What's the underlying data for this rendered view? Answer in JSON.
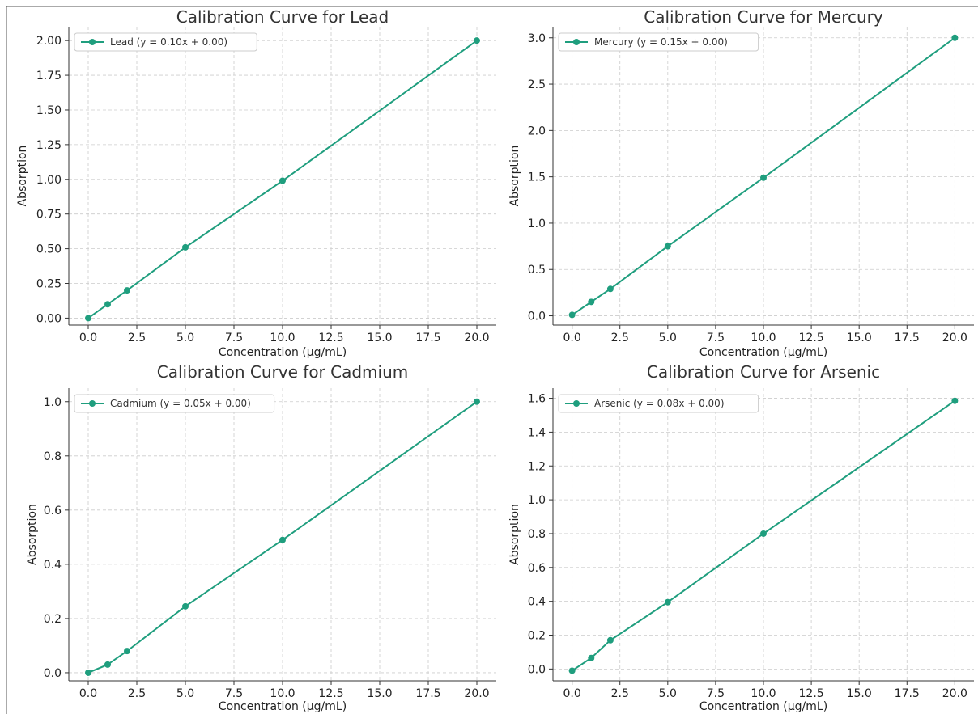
{
  "colors": {
    "series": "#1f9e7e",
    "grid": "#cccccc",
    "axis": "#333333",
    "frame": "#555555"
  },
  "chart_data": [
    {
      "type": "line",
      "title": "Calibration Curve for Lead",
      "xlabel": "Concentration (µg/mL)",
      "ylabel": "Absorption",
      "xlim": [
        -1,
        21
      ],
      "ylim": [
        -0.05,
        2.1
      ],
      "xticks": [
        0,
        2.5,
        5,
        7.5,
        10,
        12.5,
        15,
        17.5,
        20
      ],
      "xtick_labels": [
        "0.0",
        "2.5",
        "5.0",
        "7.5",
        "10.0",
        "12.5",
        "15.0",
        "17.5",
        "20.0"
      ],
      "yticks": [
        0,
        0.25,
        0.5,
        0.75,
        1.0,
        1.25,
        1.5,
        1.75,
        2.0
      ],
      "ytick_labels": [
        "0.00",
        "0.25",
        "0.50",
        "0.75",
        "1.00",
        "1.25",
        "1.50",
        "1.75",
        "2.00"
      ],
      "grid": true,
      "legend_position": "top-left",
      "series": [
        {
          "name": "Lead (y = 0.10x + 0.00)",
          "x": [
            0,
            1,
            2,
            5,
            10,
            20
          ],
          "y": [
            0.0,
            0.1,
            0.2,
            0.51,
            0.99,
            2.0
          ]
        }
      ]
    },
    {
      "type": "line",
      "title": "Calibration Curve for Mercury",
      "xlabel": "Concentration (µg/mL)",
      "ylabel": "Absorption",
      "xlim": [
        -1,
        21
      ],
      "ylim": [
        -0.1,
        3.12
      ],
      "xticks": [
        0,
        2.5,
        5,
        7.5,
        10,
        12.5,
        15,
        17.5,
        20
      ],
      "xtick_labels": [
        "0.0",
        "2.5",
        "5.0",
        "7.5",
        "10.0",
        "12.5",
        "15.0",
        "17.5",
        "20.0"
      ],
      "yticks": [
        0,
        0.5,
        1.0,
        1.5,
        2.0,
        2.5,
        3.0
      ],
      "ytick_labels": [
        "0.0",
        "0.5",
        "1.0",
        "1.5",
        "2.0",
        "2.5",
        "3.0"
      ],
      "grid": true,
      "legend_position": "top-left",
      "series": [
        {
          "name": "Mercury (y = 0.15x + 0.00)",
          "x": [
            0,
            1,
            2,
            5,
            10,
            20
          ],
          "y": [
            0.01,
            0.15,
            0.29,
            0.75,
            1.49,
            3.0
          ]
        }
      ]
    },
    {
      "type": "line",
      "title": "Calibration Curve for Cadmium",
      "xlabel": "Concentration (µg/mL)",
      "ylabel": "Absorption",
      "xlim": [
        -1,
        21
      ],
      "ylim": [
        -0.03,
        1.05
      ],
      "xticks": [
        0,
        2.5,
        5,
        7.5,
        10,
        12.5,
        15,
        17.5,
        20
      ],
      "xtick_labels": [
        "0.0",
        "2.5",
        "5.0",
        "7.5",
        "10.0",
        "12.5",
        "15.0",
        "17.5",
        "20.0"
      ],
      "yticks": [
        0,
        0.2,
        0.4,
        0.6,
        0.8,
        1.0
      ],
      "ytick_labels": [
        "0.0",
        "0.2",
        "0.4",
        "0.6",
        "0.8",
        "1.0"
      ],
      "grid": true,
      "legend_position": "top-left",
      "series": [
        {
          "name": "Cadmium (y = 0.05x + 0.00)",
          "x": [
            0,
            1,
            2,
            5,
            10,
            20
          ],
          "y": [
            0.0,
            0.03,
            0.08,
            0.245,
            0.49,
            1.0
          ]
        }
      ]
    },
    {
      "type": "line",
      "title": "Calibration Curve for Arsenic",
      "xlabel": "Concentration (µg/mL)",
      "ylabel": "Absorption",
      "xlim": [
        -1,
        21
      ],
      "ylim": [
        -0.07,
        1.66
      ],
      "xticks": [
        0,
        2.5,
        5,
        7.5,
        10,
        12.5,
        15,
        17.5,
        20
      ],
      "xtick_labels": [
        "0.0",
        "2.5",
        "5.0",
        "7.5",
        "10.0",
        "12.5",
        "15.0",
        "17.5",
        "20.0"
      ],
      "yticks": [
        0,
        0.2,
        0.4,
        0.6,
        0.8,
        1.0,
        1.2,
        1.4,
        1.6
      ],
      "ytick_labels": [
        "0.0",
        "0.2",
        "0.4",
        "0.6",
        "0.8",
        "1.0",
        "1.2",
        "1.4",
        "1.6"
      ],
      "grid": true,
      "legend_position": "top-left",
      "series": [
        {
          "name": "Arsenic (y = 0.08x + 0.00)",
          "x": [
            0,
            1,
            2,
            5,
            10,
            20
          ],
          "y": [
            -0.01,
            0.065,
            0.17,
            0.395,
            0.8,
            1.585
          ]
        }
      ]
    }
  ]
}
